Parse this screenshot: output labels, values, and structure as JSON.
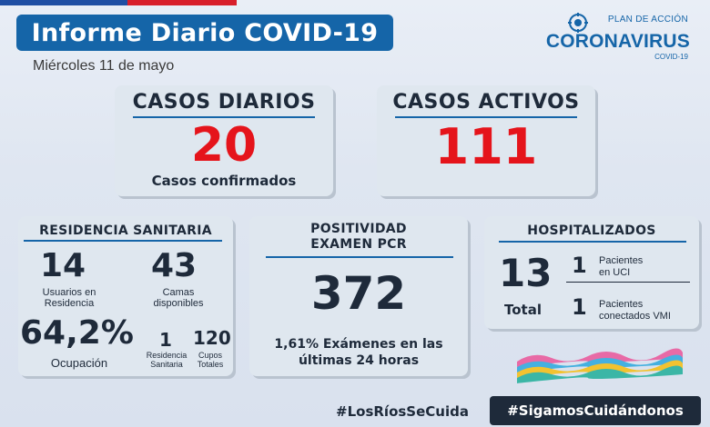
{
  "header": {
    "title": "Informe Diario COVID-19",
    "date": "Miércoles 11 de mayo"
  },
  "logo": {
    "plan": "PLAN DE ACCIÓN",
    "name": "CORONAVIRUS",
    "sub": "COVID-19",
    "icon": "government-emblem-icon"
  },
  "casos_diarios": {
    "title": "CASOS DIARIOS",
    "value": "20",
    "label": "Casos confirmados"
  },
  "casos_activos": {
    "title": "CASOS ACTIVOS",
    "value": "111"
  },
  "residencia": {
    "title": "RESIDENCIA SANITARIA",
    "usuarios_value": "14",
    "usuarios_label_1": "Usuarios en",
    "usuarios_label_2": "Residencia",
    "camas_value": "43",
    "camas_label_1": "Camas",
    "camas_label_2": "disponibles",
    "ocupacion_value": "64,2%",
    "ocupacion_label": "Ocupación",
    "residencias_value": "1",
    "residencias_label_1": "Residencia",
    "residencias_label_2": "Sanitaria",
    "cupos_value": "120",
    "cupos_label_1": "Cupos",
    "cupos_label_2": "Totales"
  },
  "positividad": {
    "title_1": "POSITIVIDAD",
    "title_2": "EXAMEN PCR",
    "value": "372",
    "sub_1": "1,61% Exámenes en las",
    "sub_2": "últimas 24 horas"
  },
  "hospitalizados": {
    "title": "HOSPITALIZADOS",
    "total_value": "13",
    "total_label": "Total",
    "uci_value": "1",
    "uci_label_1": "Pacientes",
    "uci_label_2": "en UCI",
    "vmi_value": "1",
    "vmi_label_1": "Pacientes",
    "vmi_label_2": "conectados VMI"
  },
  "footer": {
    "hashtag_1": "#LosRíosSeCuida",
    "hashtag_2": "#SigamosCuidándonos"
  },
  "colors": {
    "primary_blue": "#1565a8",
    "alert_red": "#e5141b",
    "dark_navy": "#1e2a3a",
    "card_bg": "#dfe7ef"
  }
}
